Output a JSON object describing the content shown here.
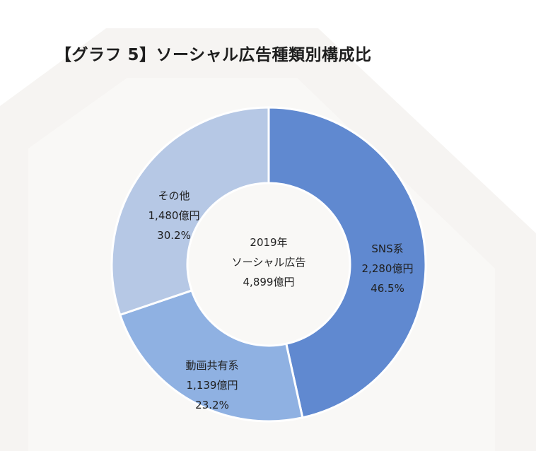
{
  "chart_data": {
    "type": "pie",
    "title": "【グラフ 5】ソーシャル広告種類別構成比",
    "center_label": [
      "2019年",
      "ソーシャル広告",
      "4,899億円"
    ],
    "slices": [
      {
        "name": "SNS系",
        "value": 2280,
        "value_label": "2,280億円",
        "percent_label": "46.5%",
        "color": "#6089d0"
      },
      {
        "name": "動画共有系",
        "value": 1139,
        "value_label": "1,139億円",
        "percent_label": "23.2%",
        "color": "#8fb1e2"
      },
      {
        "name": "その他",
        "value": 1480,
        "value_label": "1,480億円",
        "percent_label": "30.2%",
        "color": "#b6c8e5"
      }
    ]
  },
  "colors": {
    "background_decor": "#f5f3f1",
    "slice_border": "#ffffff"
  }
}
